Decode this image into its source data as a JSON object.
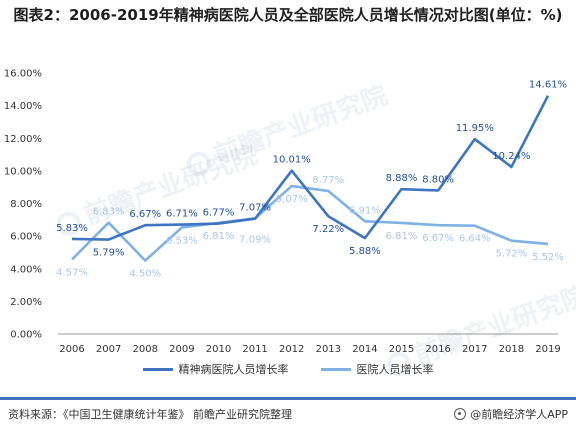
{
  "header": {
    "title": "图表2：2006-2019年精神病医院人员及全部医院人员增长情况对比图(单位：%)"
  },
  "watermark": {
    "text": "前瞻产业研究院"
  },
  "colors": {
    "psych": "#3e75c2",
    "all": "#7fb2e4",
    "all_label": "#a9c7e8",
    "psych_label": "#1f4f9a",
    "grid": "#dddddd",
    "axis": "#999999"
  },
  "chart_data": {
    "type": "line",
    "title": "2006-2019年精神病医院人员及全部医院人员增长情况对比图(单位：%)",
    "xlabel": "",
    "ylabel": "",
    "categories": [
      "2006",
      "2007",
      "2008",
      "2009",
      "2010",
      "2011",
      "2012",
      "2013",
      "2014",
      "2015",
      "2016",
      "2017",
      "2018",
      "2019"
    ],
    "ylim": [
      0,
      16
    ],
    "yticks": [
      0,
      2,
      4,
      6,
      8,
      10,
      12,
      14,
      16
    ],
    "ytick_labels": [
      "0.00%",
      "2.00%",
      "4.00%",
      "6.00%",
      "8.00%",
      "10.00%",
      "12.00%",
      "14.00%",
      "16.00%"
    ],
    "grid": false,
    "legend": "bottom",
    "series": [
      {
        "name": "精神病医院人员增长率",
        "values": [
          5.83,
          5.79,
          6.67,
          6.71,
          6.77,
          7.07,
          10.01,
          7.22,
          5.88,
          8.88,
          8.8,
          11.95,
          10.24,
          14.61
        ],
        "labels": [
          "5.83%",
          "5.79%",
          "6.67%",
          "6.71%",
          "6.77%",
          "7.07%",
          "10.01%",
          "7.22%",
          "5.88%",
          "8.88%",
          "8.80%",
          "11.95%",
          "10.24%",
          "14.61%"
        ]
      },
      {
        "name": "医院人员增长率",
        "values": [
          4.57,
          6.83,
          4.5,
          6.53,
          6.81,
          7.09,
          9.07,
          8.77,
          6.91,
          6.81,
          6.67,
          6.64,
          5.72,
          5.52
        ],
        "labels": [
          "4.57%",
          "6.83%",
          "4.50%",
          "6.53%",
          "6.81%",
          "7.09%",
          "9.07%",
          "8.77%",
          "6.91%",
          "6.81%",
          "6.67%",
          "6.64%",
          "5.72%",
          "5.52%"
        ]
      }
    ]
  },
  "legend": {
    "psych_label": "精神病医院人员增长率",
    "all_label": "医院人员增长率"
  },
  "footer": {
    "source": "资料来源：《中国卫生健康统计年鉴》 前瞻产业研究院整理",
    "brand": "@前瞻经济学人APP"
  }
}
